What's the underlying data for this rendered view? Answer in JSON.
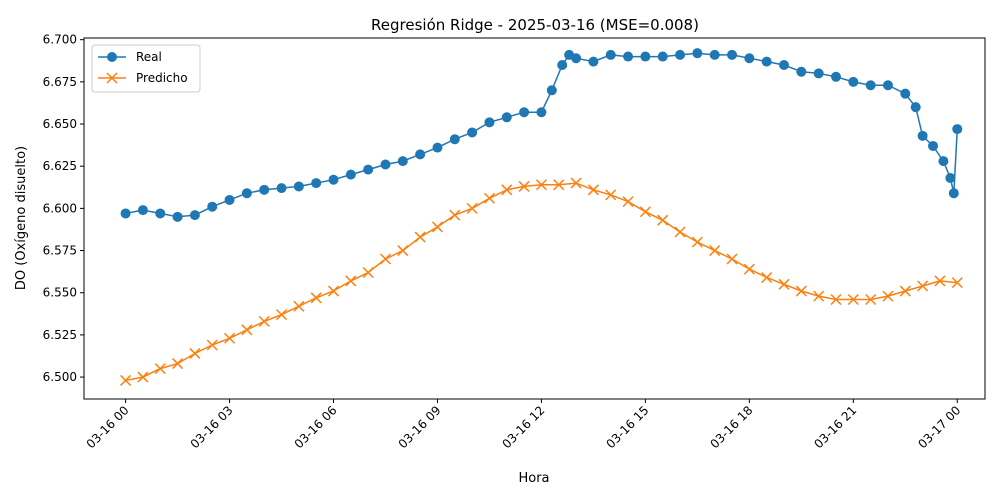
{
  "chart_data": {
    "type": "line",
    "title": "Regresión Ridge - 2025-03-16 (MSE=0.008)",
    "xlabel": "Hora",
    "ylabel": "DO (Oxígeno disuelto)",
    "x_unit": "hours",
    "xlim": [
      -1.2,
      24.8
    ],
    "ylim": [
      6.487,
      6.701
    ],
    "x_ticks": [
      0,
      3,
      6,
      9,
      12,
      15,
      18,
      21,
      24
    ],
    "x_tick_labels": [
      "03-16 00",
      "03-16 03",
      "03-16 06",
      "03-16 09",
      "03-16 12",
      "03-16 15",
      "03-16 18",
      "03-16 21",
      "03-17 00"
    ],
    "y_ticks": [
      6.5,
      6.525,
      6.55,
      6.575,
      6.6,
      6.625,
      6.65,
      6.675,
      6.7
    ],
    "y_tick_labels": [
      "6.500",
      "6.525",
      "6.550",
      "6.575",
      "6.600",
      "6.625",
      "6.650",
      "6.675",
      "6.700"
    ],
    "grid": false,
    "legend_position": "top-left",
    "series": [
      {
        "name": "Real",
        "color": "#1f77b4",
        "marker": "circle",
        "x": [
          0.0,
          0.5,
          1.0,
          1.5,
          2.0,
          2.5,
          3.0,
          3.5,
          4.0,
          4.5,
          5.0,
          5.5,
          6.0,
          6.5,
          7.0,
          7.5,
          8.0,
          8.5,
          9.0,
          9.5,
          10.0,
          10.5,
          11.0,
          11.5,
          12.0,
          12.3,
          12.6,
          12.8,
          13.0,
          13.5,
          14.0,
          14.5,
          15.0,
          15.5,
          16.0,
          16.5,
          17.0,
          17.5,
          18.0,
          18.5,
          19.0,
          19.5,
          20.0,
          20.5,
          21.0,
          21.5,
          22.0,
          22.5,
          22.8,
          23.0,
          23.3,
          23.6,
          23.8,
          23.9,
          24.0
        ],
        "y": [
          6.597,
          6.599,
          6.597,
          6.595,
          6.596,
          6.601,
          6.605,
          6.609,
          6.611,
          6.612,
          6.613,
          6.615,
          6.617,
          6.62,
          6.623,
          6.626,
          6.628,
          6.632,
          6.636,
          6.641,
          6.645,
          6.651,
          6.654,
          6.657,
          6.657,
          6.67,
          6.685,
          6.691,
          6.689,
          6.687,
          6.691,
          6.69,
          6.69,
          6.69,
          6.691,
          6.692,
          6.691,
          6.691,
          6.689,
          6.687,
          6.685,
          6.681,
          6.68,
          6.678,
          6.675,
          6.673,
          6.673,
          6.668,
          6.66,
          6.643,
          6.637,
          6.628,
          6.618,
          6.609,
          6.647
        ]
      },
      {
        "name": "Predicho",
        "color": "#ff7f0e",
        "marker": "x",
        "x": [
          0.0,
          0.5,
          1.0,
          1.5,
          2.0,
          2.5,
          3.0,
          3.5,
          4.0,
          4.5,
          5.0,
          5.5,
          6.0,
          6.5,
          7.0,
          7.5,
          8.0,
          8.5,
          9.0,
          9.5,
          10.0,
          10.5,
          11.0,
          11.5,
          12.0,
          12.5,
          13.0,
          13.5,
          14.0,
          14.5,
          15.0,
          15.5,
          16.0,
          16.5,
          17.0,
          17.5,
          18.0,
          18.5,
          19.0,
          19.5,
          20.0,
          20.5,
          21.0,
          21.5,
          22.0,
          22.5,
          23.0,
          23.5,
          24.0
        ],
        "y": [
          6.498,
          6.5,
          6.505,
          6.508,
          6.514,
          6.519,
          6.523,
          6.528,
          6.533,
          6.537,
          6.542,
          6.547,
          6.551,
          6.557,
          6.562,
          6.57,
          6.575,
          6.583,
          6.589,
          6.596,
          6.6,
          6.606,
          6.611,
          6.613,
          6.614,
          6.614,
          6.615,
          6.611,
          6.608,
          6.604,
          6.598,
          6.593,
          6.586,
          6.58,
          6.575,
          6.57,
          6.564,
          6.559,
          6.555,
          6.551,
          6.548,
          6.546,
          6.546,
          6.546,
          6.548,
          6.551,
          6.554,
          6.557,
          6.556
        ]
      }
    ]
  }
}
